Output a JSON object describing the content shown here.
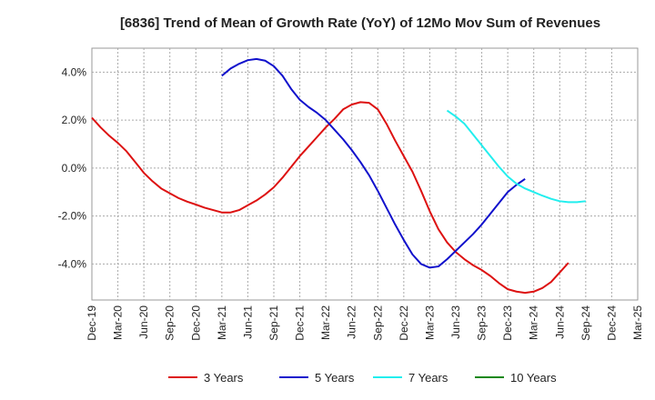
{
  "chart_data": {
    "type": "line",
    "title": "[6836]  Trend of Mean of Growth Rate (YoY) of 12Mo Mov Sum of Revenues",
    "xlabel": "",
    "ylabel": "",
    "ylim": [
      -5.5,
      5.0
    ],
    "y_ticks": [
      4.0,
      2.0,
      0.0,
      -2.0,
      -4.0
    ],
    "y_tick_labels": [
      "4.0%",
      "2.0%",
      "0.0%",
      "-2.0%",
      "-4.0%"
    ],
    "x_ticks": [
      "Dec-19",
      "Mar-20",
      "Jun-20",
      "Sep-20",
      "Dec-20",
      "Mar-21",
      "Jun-21",
      "Sep-21",
      "Dec-21",
      "Mar-22",
      "Jun-22",
      "Sep-22",
      "Dec-22",
      "Mar-23",
      "Jun-23",
      "Sep-23",
      "Dec-23",
      "Mar-24",
      "Jun-24",
      "Sep-24",
      "Dec-24",
      "Mar-25"
    ],
    "grid": true,
    "legend_position": "bottom",
    "series": [
      {
        "name": "3 Years",
        "color": "#dd1111",
        "start_index": 0,
        "values": [
          2.1,
          1.7,
          1.35,
          1.05,
          0.7,
          0.25,
          -0.2,
          -0.55,
          -0.85,
          -1.05,
          -1.25,
          -1.4,
          -1.52,
          -1.65,
          -1.75,
          -1.85,
          -1.85,
          -1.75,
          -1.55,
          -1.35,
          -1.1,
          -0.8,
          -0.4,
          0.05,
          0.5,
          0.9,
          1.3,
          1.7,
          2.05,
          2.45,
          2.65,
          2.75,
          2.72,
          2.45,
          1.85,
          1.15,
          0.5,
          -0.15,
          -0.95,
          -1.8,
          -2.55,
          -3.1,
          -3.5,
          -3.8,
          -4.05,
          -4.25,
          -4.5,
          -4.8,
          -5.05,
          -5.15,
          -5.2,
          -5.15,
          -5.0,
          -4.75,
          -4.35,
          -3.95
        ]
      },
      {
        "name": "5 Years",
        "color": "#1111cc",
        "start_index": 15,
        "values": [
          3.85,
          4.15,
          4.35,
          4.5,
          4.55,
          4.48,
          4.25,
          3.85,
          3.3,
          2.85,
          2.55,
          2.3,
          2.0,
          1.6,
          1.2,
          0.75,
          0.25,
          -0.3,
          -0.95,
          -1.65,
          -2.35,
          -3.0,
          -3.6,
          -4.0,
          -4.15,
          -4.1,
          -3.8,
          -3.45,
          -3.1,
          -2.75,
          -2.35,
          -1.9,
          -1.45,
          -1.0,
          -0.7,
          -0.45
        ]
      },
      {
        "name": "7 Years",
        "color": "#22eeee",
        "start_index": 41,
        "values": [
          2.4,
          2.15,
          1.85,
          1.4,
          0.95,
          0.5,
          0.05,
          -0.35,
          -0.65,
          -0.85,
          -1.0,
          -1.15,
          -1.28,
          -1.38,
          -1.42,
          -1.42,
          -1.38
        ]
      },
      {
        "name": "10 Years",
        "color": "#118811",
        "start_index": 0,
        "values": []
      }
    ]
  }
}
